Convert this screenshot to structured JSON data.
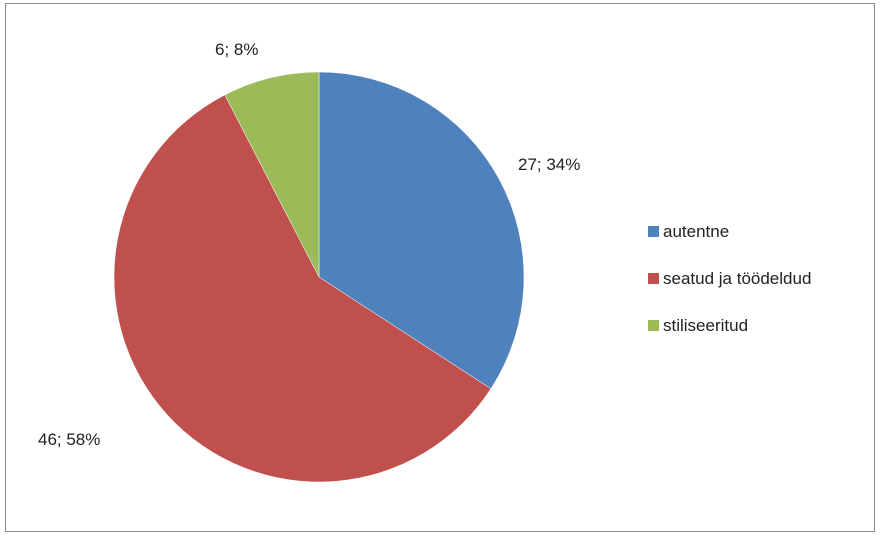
{
  "chart_data": {
    "type": "pie",
    "categories": [
      "autentne",
      "seatud ja töödeldud",
      "stiliseeritud"
    ],
    "values": [
      27,
      46,
      6
    ],
    "percent_labels": [
      "27; 34%",
      "46; 58%",
      "6; 8%"
    ],
    "colors": [
      "#4f81bd",
      "#c0504d",
      "#9bbb59"
    ],
    "start_angle": "12 o'clock",
    "direction": "clockwise",
    "legend": {
      "placement": "right",
      "entries": [
        "autentne",
        "seatud ja töödeldud",
        "stiliseeritud"
      ]
    },
    "title": ""
  }
}
